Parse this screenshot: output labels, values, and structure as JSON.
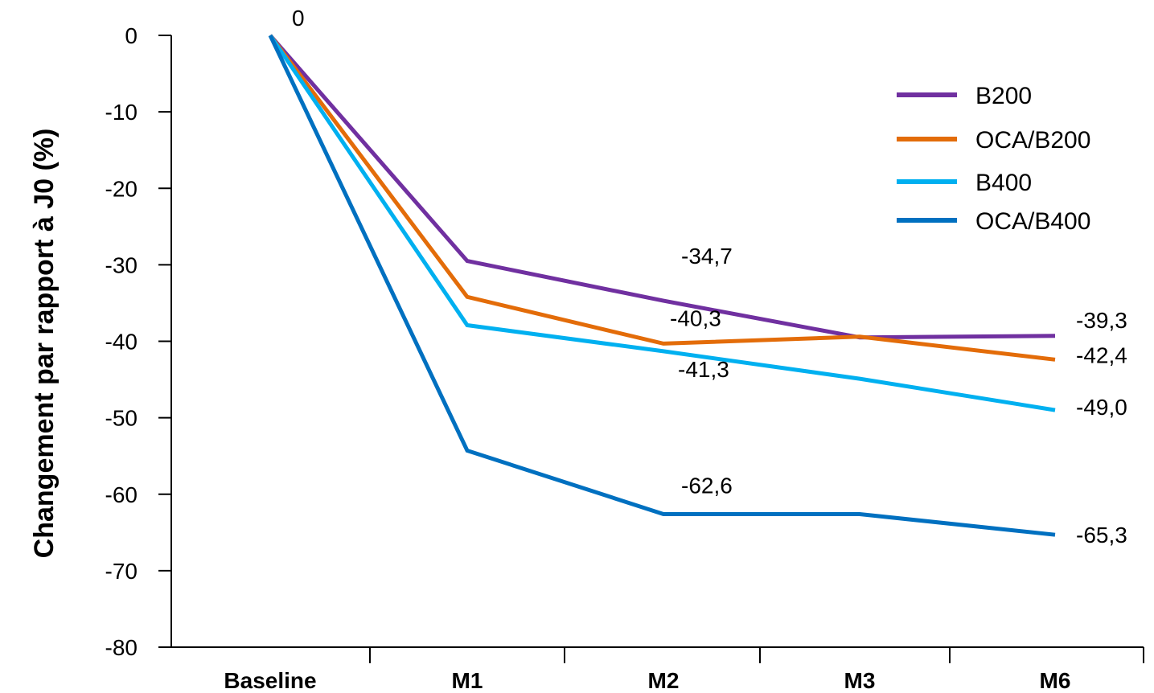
{
  "chart_data": {
    "type": "line",
    "ylabel": "Changement par rapport à J0 (%)",
    "xlabel": "",
    "categories": [
      "Baseline",
      "M1",
      "M2",
      "M3",
      "M6"
    ],
    "ylim": [
      -80,
      0
    ],
    "yticks": [
      0,
      -10,
      -20,
      -30,
      -40,
      -50,
      -60,
      -70,
      -80
    ],
    "ytick_labels": [
      "0",
      "-10",
      "-20",
      "-30",
      "-40",
      "-50",
      "-60",
      "-70",
      "-80"
    ],
    "grid": false,
    "legend_position": "top-right",
    "series": [
      {
        "name": "B200",
        "color": "#7030A0",
        "values": [
          0,
          -29.5,
          -34.7,
          -39.5,
          -39.3
        ]
      },
      {
        "name": "OCA/B200",
        "color": "#E36C09",
        "values": [
          0,
          -34.2,
          -40.3,
          -39.4,
          -42.4
        ]
      },
      {
        "name": "B400",
        "color": "#00B0F0",
        "values": [
          0,
          -37.9,
          -41.3,
          -44.9,
          -49.0
        ]
      },
      {
        "name": "OCA/B400",
        "color": "#0070C0",
        "values": [
          0,
          -54.3,
          -62.6,
          -62.6,
          -65.3
        ]
      }
    ],
    "data_labels": [
      {
        "text": "0",
        "series": 0,
        "index": 0,
        "color": "#2E3192"
      },
      {
        "text": "-34,7",
        "series": 0,
        "index": 2,
        "color": "#000000"
      },
      {
        "text": "-40,3",
        "series": 1,
        "index": 2,
        "color": "#000000"
      },
      {
        "text": "-41,3",
        "series": 2,
        "index": 2,
        "color": "#000000"
      },
      {
        "text": "-62,6",
        "series": 3,
        "index": 2,
        "color": "#000000"
      },
      {
        "text": "-39,3",
        "series": 0,
        "index": 4,
        "color": "#000000"
      },
      {
        "text": "-42,4",
        "series": 1,
        "index": 4,
        "color": "#000000"
      },
      {
        "text": "-49,0",
        "series": 2,
        "index": 4,
        "color": "#000000"
      },
      {
        "text": "-65,3",
        "series": 3,
        "index": 4,
        "color": "#000000"
      }
    ]
  }
}
